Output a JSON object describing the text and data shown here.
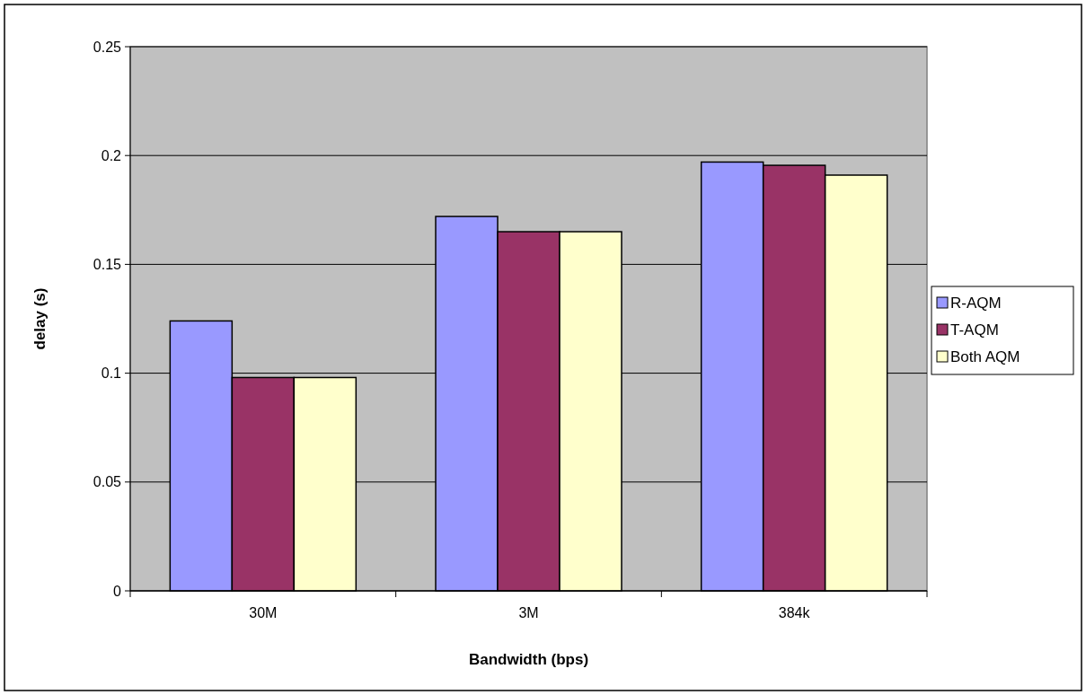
{
  "chart_data": {
    "type": "bar",
    "xlabel": "Bandwidth (bps)",
    "ylabel": "delay (s)",
    "categories": [
      "30M",
      "3M",
      "384k"
    ],
    "series": [
      {
        "name": "R-AQM",
        "color": "#9999ff",
        "values": [
          0.124,
          0.172,
          0.197
        ]
      },
      {
        "name": "T-AQM",
        "color": "#993366",
        "values": [
          0.098,
          0.165,
          0.1955
        ]
      },
      {
        "name": "Both AQM",
        "color": "#ffffcc",
        "values": [
          0.098,
          0.165,
          0.191
        ]
      }
    ],
    "ylim": [
      0,
      0.25
    ],
    "yticks": [
      0,
      0.05,
      0.1,
      0.15,
      0.2,
      0.25
    ],
    "grid": "y",
    "legend": "right"
  }
}
